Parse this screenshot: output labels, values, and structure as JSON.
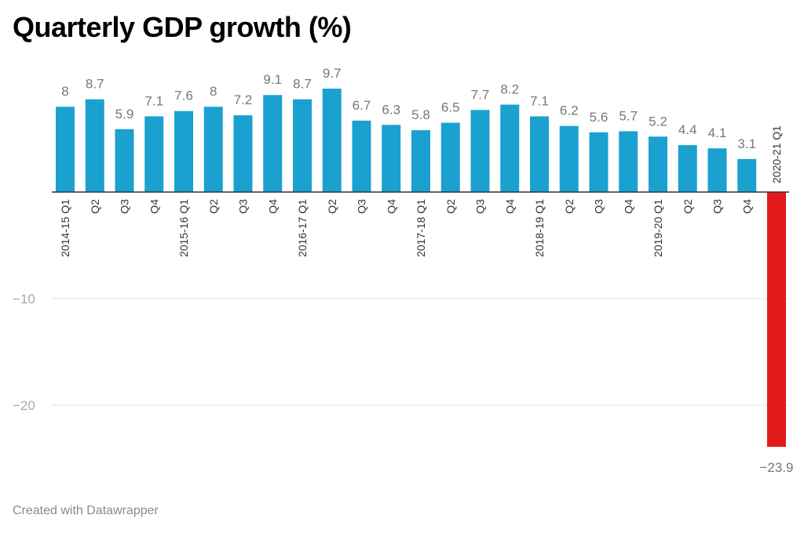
{
  "title": "Quarterly GDP growth (%)",
  "footer": "Created with Datawrapper",
  "chart_data": {
    "type": "bar",
    "title": "Quarterly GDP growth (%)",
    "xlabel": "",
    "ylabel": "",
    "ylim": [
      -23.9,
      9.7
    ],
    "y_ticks": [
      -10,
      -20
    ],
    "y_tick_labels": [
      "−10",
      "−20"
    ],
    "grid": true,
    "categories": [
      "2014-15 Q1",
      "Q2",
      "Q3",
      "Q4",
      "2015-16 Q1",
      "Q2",
      "Q3",
      "Q4",
      "2016-17 Q1",
      "Q2",
      "Q3",
      "Q4",
      "2017-18 Q1",
      "Q2",
      "Q3",
      "Q4",
      "2018-19 Q1",
      "Q2",
      "Q3",
      "Q4",
      "2019-20 Q1",
      "Q2",
      "Q3",
      "Q4",
      "2020-21 Q1"
    ],
    "values": [
      8,
      8.7,
      5.9,
      7.1,
      7.6,
      8,
      7.2,
      9.1,
      8.7,
      9.7,
      6.7,
      6.3,
      5.8,
      6.5,
      7.7,
      8.2,
      7.1,
      6.2,
      5.6,
      5.7,
      5.2,
      4.4,
      4.1,
      3.1,
      -23.9
    ],
    "value_labels": [
      "8",
      "8.7",
      "5.9",
      "7.1",
      "7.6",
      "8",
      "7.2",
      "9.1",
      "8.7",
      "9.7",
      "6.7",
      "6.3",
      "5.8",
      "6.5",
      "7.7",
      "8.2",
      "7.1",
      "6.2",
      "5.6",
      "5.7",
      "5.2",
      "4.4",
      "4.1",
      "3.1",
      "−23.9"
    ],
    "colors": {
      "positive": "#1aa1d0",
      "negative": "#e31a1c",
      "grid": "#e0e0e0",
      "baseline": "#333333"
    }
  }
}
